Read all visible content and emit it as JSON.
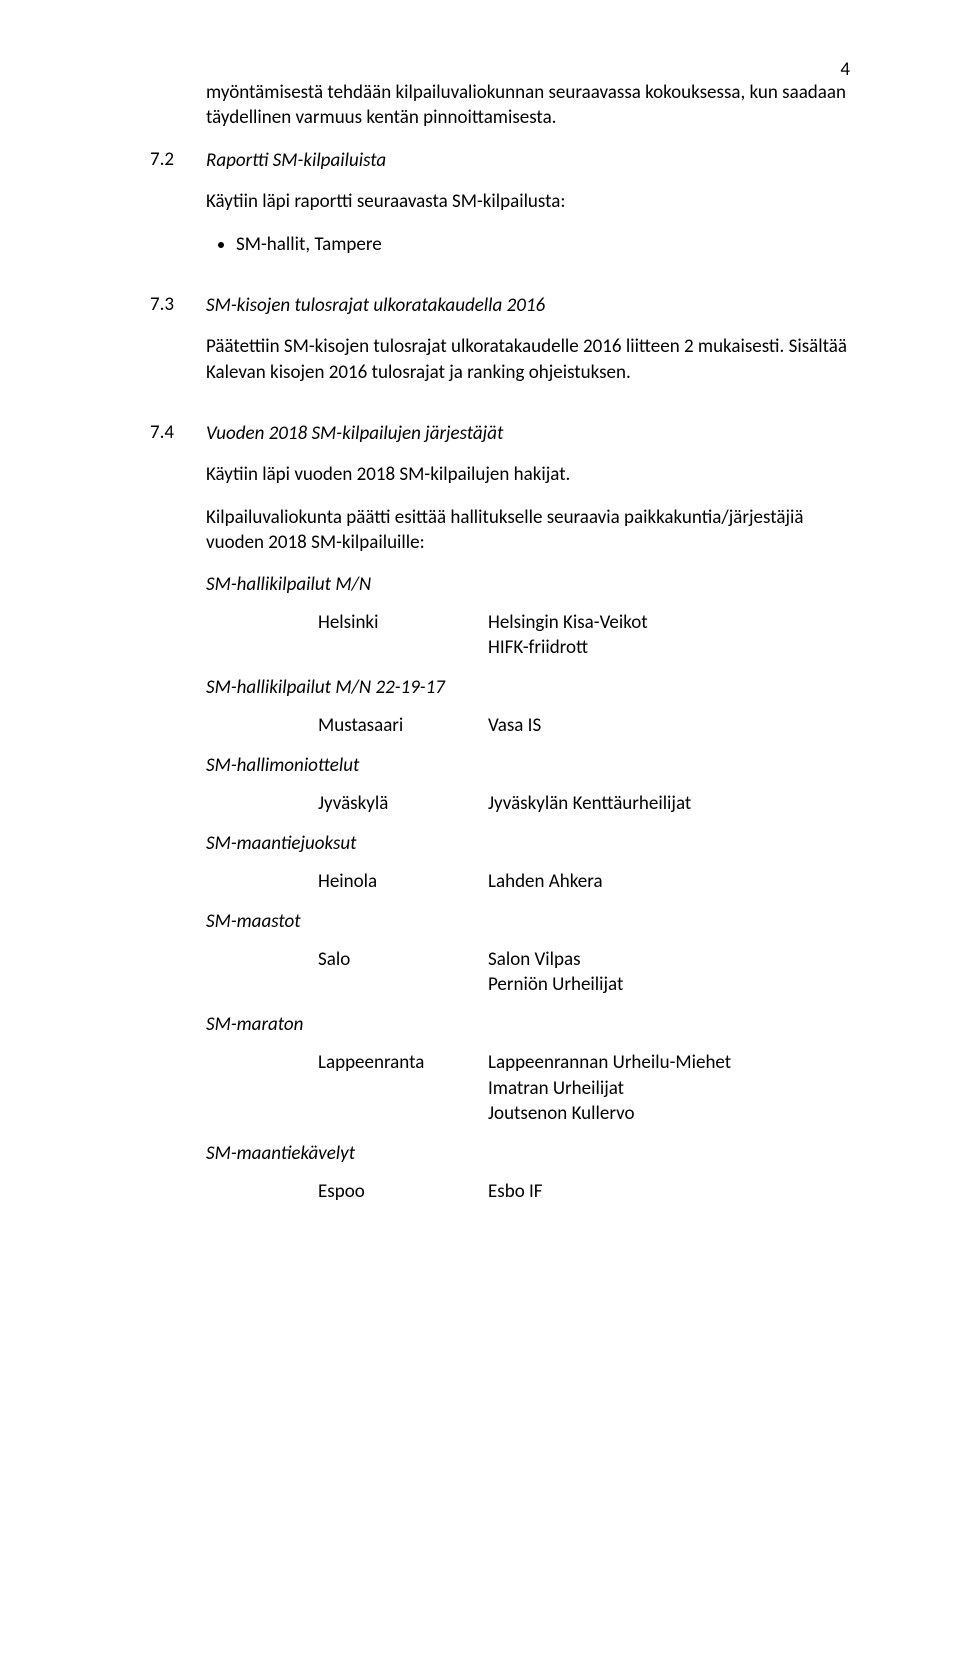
{
  "page_number": "4",
  "intro_para": "myöntämisestä tehdään kilpailuvaliokunnan seuraavassa kokouksessa, kun saadaan täydellinen varmuus kentän pinnoittamisesta.",
  "s72": {
    "num": "7.2",
    "title": "Raportti SM-kilpailuista",
    "line": "Käytiin läpi raportti seuraavasta SM-kilpailusta:",
    "bullet": "SM-hallit, Tampere"
  },
  "s73": {
    "num": "7.3",
    "title": "SM-kisojen tulosrajat ulkoratakaudella 2016",
    "para": "Päätettiin SM-kisojen tulosrajat ulkoratakaudelle 2016 liitteen 2 mukaisesti. Sisältää Kalevan kisojen 2016 tulosrajat ja ranking ohjeistuksen."
  },
  "s74": {
    "num": "7.4",
    "title": "Vuoden 2018 SM-kilpailujen järjestäjät",
    "line1": "Käytiin läpi vuoden 2018 SM-kilpailujen hakijat.",
    "line2": "Kilpailuvaliokunta päätti esittää hallitukselle seuraavia paikkakuntia/järjestäjiä vuoden 2018 SM-kilpailuille:"
  },
  "events": [
    {
      "heading": "SM-hallikilpailut M/N",
      "rows": [
        {
          "city": "Helsinki",
          "orgs": [
            "Helsingin Kisa-Veikot",
            "HIFK-friidrott"
          ]
        }
      ]
    },
    {
      "heading": "SM-hallikilpailut M/N 22-19-17",
      "rows": [
        {
          "city": "Mustasaari",
          "orgs": [
            "Vasa IS"
          ]
        }
      ]
    },
    {
      "heading": "SM-hallimoniottelut",
      "rows": [
        {
          "city": "Jyväskylä",
          "orgs": [
            "Jyväskylän Kenttäurheilijat"
          ]
        }
      ]
    },
    {
      "heading": "SM-maantiejuoksut",
      "rows": [
        {
          "city": "Heinola",
          "orgs": [
            "Lahden Ahkera"
          ]
        }
      ]
    },
    {
      "heading": "SM-maastot",
      "rows": [
        {
          "city": "Salo",
          "orgs": [
            "Salon Vilpas",
            "Perniön Urheilijat"
          ]
        }
      ]
    },
    {
      "heading": "SM-maraton",
      "rows": [
        {
          "city": "Lappeenranta",
          "orgs": [
            "Lappeenrannan Urheilu-Miehet",
            "Imatran Urheilijat",
            "Joutsenon Kullervo"
          ]
        }
      ]
    },
    {
      "heading": "SM-maantiekävelyt",
      "rows": [
        {
          "city": "Espoo",
          "orgs": [
            "Esbo IF"
          ]
        }
      ]
    }
  ]
}
